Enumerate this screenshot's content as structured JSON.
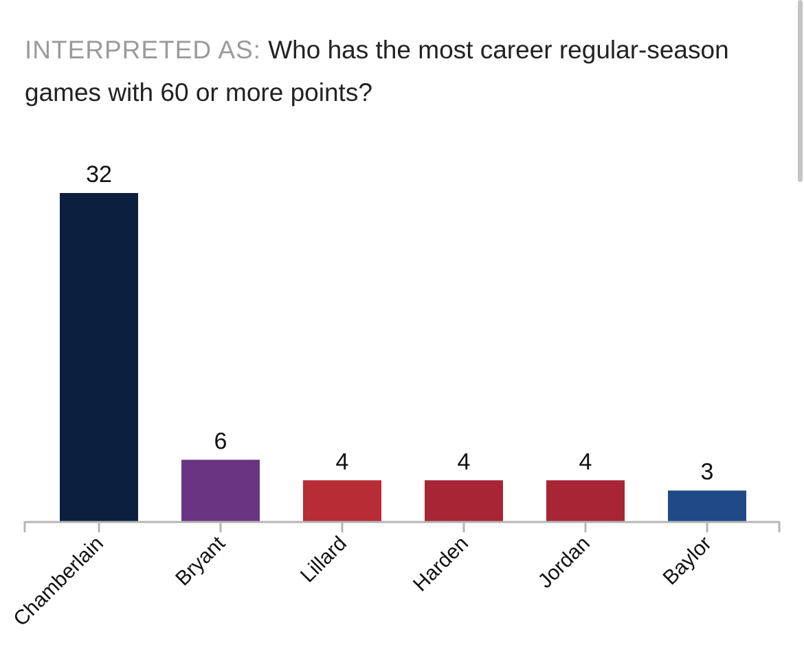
{
  "header": {
    "prefix": "INTERPRETED AS:",
    "question": "Who has the most career regular-season games with 60 or more points?"
  },
  "chart_data": {
    "type": "bar",
    "categories": [
      "Chamberlain",
      "Bryant",
      "Lillard",
      "Harden",
      "Jordan",
      "Baylor"
    ],
    "values": [
      32,
      6,
      4,
      4,
      4,
      3
    ],
    "colors": [
      "#0c1f3f",
      "#6a3483",
      "#b82c35",
      "#a82535",
      "#a82535",
      "#1f4a86"
    ],
    "ylim": [
      0,
      32
    ],
    "grid": false,
    "legend": "none"
  }
}
